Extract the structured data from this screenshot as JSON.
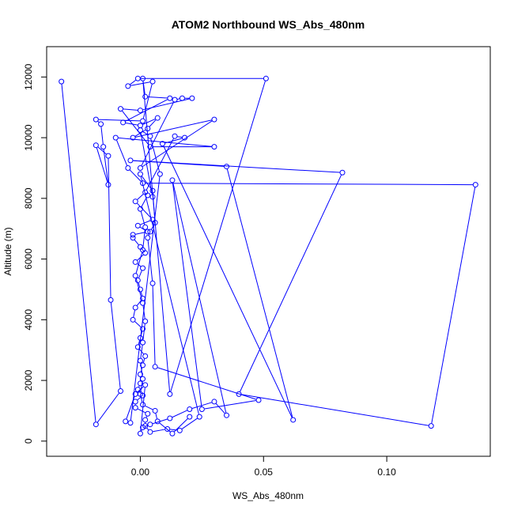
{
  "chart_data": {
    "type": "line",
    "title": "ATOM2 Northbound WS_Abs_480nm",
    "xlabel": "WS_Abs_480nm",
    "ylabel": "Altitude (m)",
    "xlim": [
      -0.038,
      0.142
    ],
    "ylim": [
      -500,
      13000
    ],
    "x_ticks": [
      0.0,
      0.05,
      0.1
    ],
    "x_tick_labels": [
      "0.00",
      "0.05",
      "0.10"
    ],
    "y_ticks": [
      0,
      2000,
      4000,
      6000,
      8000,
      10000,
      12000
    ],
    "y_tick_labels": [
      "0",
      "2000",
      "4000",
      "6000",
      "8000",
      "10000",
      "12000"
    ],
    "grid": false,
    "series": [
      {
        "color": "#0000ff",
        "marker": "open-circle",
        "points": [
          [
            -0.032,
            11850
          ],
          [
            -0.018,
            550
          ],
          [
            -0.008,
            1650
          ],
          [
            -0.012,
            4650
          ],
          [
            -0.013,
            9400
          ],
          [
            -0.018,
            9750
          ],
          [
            -0.013,
            8450
          ],
          [
            -0.015,
            9700
          ],
          [
            -0.016,
            10450
          ],
          [
            -0.018,
            10600
          ],
          [
            0.001,
            10550
          ],
          [
            0.005,
            11850
          ],
          [
            -0.005,
            11700
          ],
          [
            -0.001,
            11950
          ],
          [
            0.051,
            11950
          ],
          [
            0.012,
            1550
          ],
          [
            0.001,
            11950
          ],
          [
            0.002,
            11350
          ],
          [
            0.012,
            11300
          ],
          [
            -0.007,
            10500
          ],
          [
            0.0,
            10400
          ],
          [
            0.007,
            10650
          ],
          [
            0.003,
            10300
          ],
          [
            -0.003,
            10000
          ],
          [
            0.03,
            10600
          ],
          [
            0.0,
            9000
          ],
          [
            0.014,
            11250
          ],
          [
            0.017,
            11300
          ],
          [
            0.021,
            11300
          ],
          [
            0.0,
            10900
          ],
          [
            -0.008,
            10950
          ],
          [
            0.004,
            9700
          ],
          [
            0.03,
            9700
          ],
          [
            -0.01,
            10000
          ],
          [
            -0.005,
            9000
          ],
          [
            0.001,
            8500
          ],
          [
            0.136,
            8450
          ],
          [
            0.118,
            500
          ],
          [
            0.04,
            1550
          ],
          [
            0.082,
            8850
          ],
          [
            -0.004,
            9250
          ],
          [
            0.035,
            9050
          ],
          [
            0.062,
            700
          ],
          [
            0.009,
            9800
          ],
          [
            0.018,
            10000
          ],
          [
            0.014,
            10050
          ],
          [
            0.002,
            8200
          ],
          [
            -0.002,
            7900
          ],
          [
            0.005,
            7300
          ],
          [
            -0.001,
            7100
          ],
          [
            0.003,
            6900
          ],
          [
            -0.003,
            6800
          ],
          [
            -0.003,
            6700
          ],
          [
            0.0,
            6400
          ],
          [
            0.002,
            6200
          ],
          [
            -0.002,
            5900
          ],
          [
            0.001,
            5700
          ],
          [
            -0.001,
            5300
          ],
          [
            0.0,
            5000
          ],
          [
            0.001,
            4700
          ],
          [
            -0.002,
            4400
          ],
          [
            -0.003,
            4000
          ],
          [
            0.001,
            3700
          ],
          [
            0.0,
            3400
          ],
          [
            -0.001,
            3100
          ],
          [
            0.002,
            2800
          ],
          [
            0.001,
            2500
          ],
          [
            0.0,
            2200
          ],
          [
            0.0,
            1900
          ],
          [
            -0.001,
            1700
          ],
          [
            0.001,
            1500
          ],
          [
            -0.002,
            1300
          ],
          [
            -0.002,
            1100
          ],
          [
            0.003,
            900
          ],
          [
            0.002,
            700
          ],
          [
            0.002,
            500
          ],
          [
            0.004,
            300
          ],
          [
            0.011,
            400
          ],
          [
            0.016,
            350
          ],
          [
            0.024,
            800
          ],
          [
            0.0,
            8800
          ],
          [
            0.005,
            8250
          ],
          [
            0.006,
            7200
          ],
          [
            0.004,
            6900
          ],
          [
            0.003,
            6700
          ],
          [
            0.005,
            5200
          ],
          [
            0.006,
            2450
          ],
          [
            0.048,
            1350
          ],
          [
            0.025,
            1050
          ],
          [
            0.013,
            8600
          ],
          [
            0.035,
            850
          ],
          [
            0.03,
            1300
          ],
          [
            0.02,
            1050
          ],
          [
            0.012,
            750
          ],
          [
            0.004,
            550
          ],
          [
            0.001,
            450
          ],
          [
            0.0,
            250
          ],
          [
            0.002,
            1850
          ],
          [
            -0.002,
            1550
          ],
          [
            -0.006,
            650
          ],
          [
            -0.004,
            600
          ],
          [
            0.008,
            8800
          ],
          [
            0.004,
            10050
          ],
          [
            0.0,
            10250
          ],
          [
            0.005,
            8050
          ],
          [
            0.003,
            8100
          ],
          [
            0.0,
            7650
          ],
          [
            0.002,
            7050
          ],
          [
            0.001,
            6300
          ],
          [
            -0.002,
            5450
          ],
          [
            0.001,
            4550
          ],
          [
            0.002,
            3950
          ],
          [
            0.001,
            3250
          ],
          [
            0.0,
            2650
          ],
          [
            0.001,
            2050
          ],
          [
            0.0,
            1550
          ],
          [
            0.001,
            1200
          ],
          [
            0.006,
            1000
          ],
          [
            0.007,
            650
          ],
          [
            0.013,
            250
          ],
          [
            0.02,
            800
          ]
        ]
      }
    ]
  }
}
